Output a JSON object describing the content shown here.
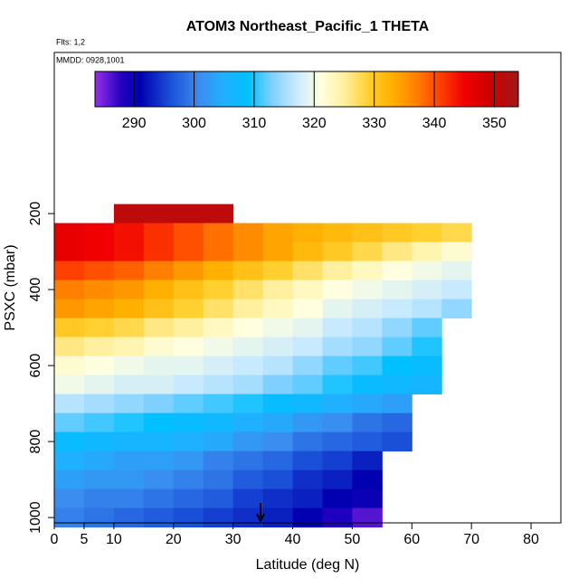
{
  "chart_data": {
    "type": "heatmap",
    "title": "ATOM3 Northeast_Pacific_1 THETA",
    "subtitles": [
      "Flts: 1,2",
      "MMDD: 0928,1001"
    ],
    "xlabel": "Latitude (deg N)",
    "ylabel": "PSXC (mbar)",
    "xlim": [
      0,
      85
    ],
    "xticks": [
      0,
      5,
      10,
      20,
      30,
      40,
      50,
      60,
      70,
      80
    ],
    "ylim": [
      1014,
      -224
    ],
    "yticks": [
      200,
      400,
      600,
      800,
      1000
    ],
    "xbins": [
      0,
      5,
      10,
      15,
      20,
      25,
      30,
      35,
      40,
      45,
      50,
      55,
      60,
      65,
      70
    ],
    "y": [
      200,
      250,
      300,
      350,
      400,
      450,
      500,
      550,
      600,
      650,
      700,
      750,
      800,
      850,
      900,
      950,
      1000
    ],
    "row_height": 50,
    "z": [
      [
        null,
        null,
        351,
        351,
        351,
        351,
        null,
        null,
        null,
        null,
        null,
        null,
        null,
        null
      ],
      [
        346,
        345,
        344,
        342,
        340,
        338,
        336,
        334,
        333,
        332,
        331,
        330,
        329,
        328
      ],
      [
        346,
        345,
        344,
        342,
        340,
        338,
        336,
        334,
        332,
        330,
        328,
        326,
        324,
        322
      ],
      [
        341,
        340,
        339,
        337,
        335,
        333,
        331,
        329,
        327,
        325,
        323,
        321,
        320,
        319
      ],
      [
        337,
        336,
        335,
        333,
        331,
        329,
        327,
        325,
        323,
        321,
        320,
        319,
        318,
        317
      ],
      [
        335,
        334,
        333,
        331,
        329,
        327,
        325,
        323,
        321,
        319,
        318,
        317,
        316,
        314
      ],
      [
        330,
        329,
        328,
        326,
        325,
        323,
        321,
        320,
        319,
        317,
        316,
        314,
        312,
        null
      ],
      [
        326,
        325,
        324,
        322,
        321,
        320,
        319,
        318,
        317,
        315,
        314,
        312,
        310,
        null
      ],
      [
        322,
        321,
        320,
        319,
        319,
        318,
        317,
        316,
        314,
        312,
        311,
        309,
        308,
        null
      ],
      [
        320,
        319,
        318,
        318,
        317,
        316,
        315,
        313,
        312,
        310,
        308,
        307,
        306,
        null
      ],
      [
        316,
        315,
        314,
        313,
        312,
        311,
        310,
        308,
        307,
        305,
        304,
        303,
        null,
        null
      ],
      [
        312,
        311,
        310,
        309,
        308,
        307,
        305,
        304,
        302,
        301,
        299,
        298,
        null,
        null
      ],
      [
        308,
        307,
        306,
        306,
        305,
        304,
        302,
        301,
        299,
        298,
        297,
        296,
        null,
        null
      ],
      [
        305,
        304,
        303,
        303,
        302,
        300,
        299,
        298,
        296,
        295,
        293,
        null,
        null,
        null
      ],
      [
        303,
        302,
        302,
        301,
        300,
        299,
        297,
        296,
        294,
        293,
        291,
        null,
        null,
        null
      ],
      [
        301,
        300,
        300,
        299,
        298,
        297,
        295,
        294,
        293,
        291,
        290,
        null,
        null,
        null
      ],
      [
        300,
        299,
        298,
        297,
        296,
        295,
        294,
        293,
        291,
        288,
        286,
        null,
        null,
        null
      ]
    ],
    "clim": [
      283.5,
      354
    ],
    "cticks": [
      290,
      300,
      310,
      320,
      330,
      340,
      350
    ],
    "colorscale": [
      [
        284,
        "#8a2be2"
      ],
      [
        288,
        "#2000c0"
      ],
      [
        291,
        "#0000b0"
      ],
      [
        296,
        "#1a4fd8"
      ],
      [
        301,
        "#3a8ef0"
      ],
      [
        305,
        "#1fb0ff"
      ],
      [
        309,
        "#00c0ff"
      ],
      [
        313,
        "#80d0ff"
      ],
      [
        317,
        "#c8eaff"
      ],
      [
        321,
        "#ffffe0"
      ],
      [
        325,
        "#fff0a0"
      ],
      [
        329,
        "#ffd030"
      ],
      [
        333,
        "#ffb000"
      ],
      [
        337,
        "#ff8000"
      ],
      [
        341,
        "#ff4000"
      ],
      [
        345,
        "#f00000"
      ],
      [
        349,
        "#d00000"
      ],
      [
        354,
        "#a01818"
      ]
    ]
  }
}
